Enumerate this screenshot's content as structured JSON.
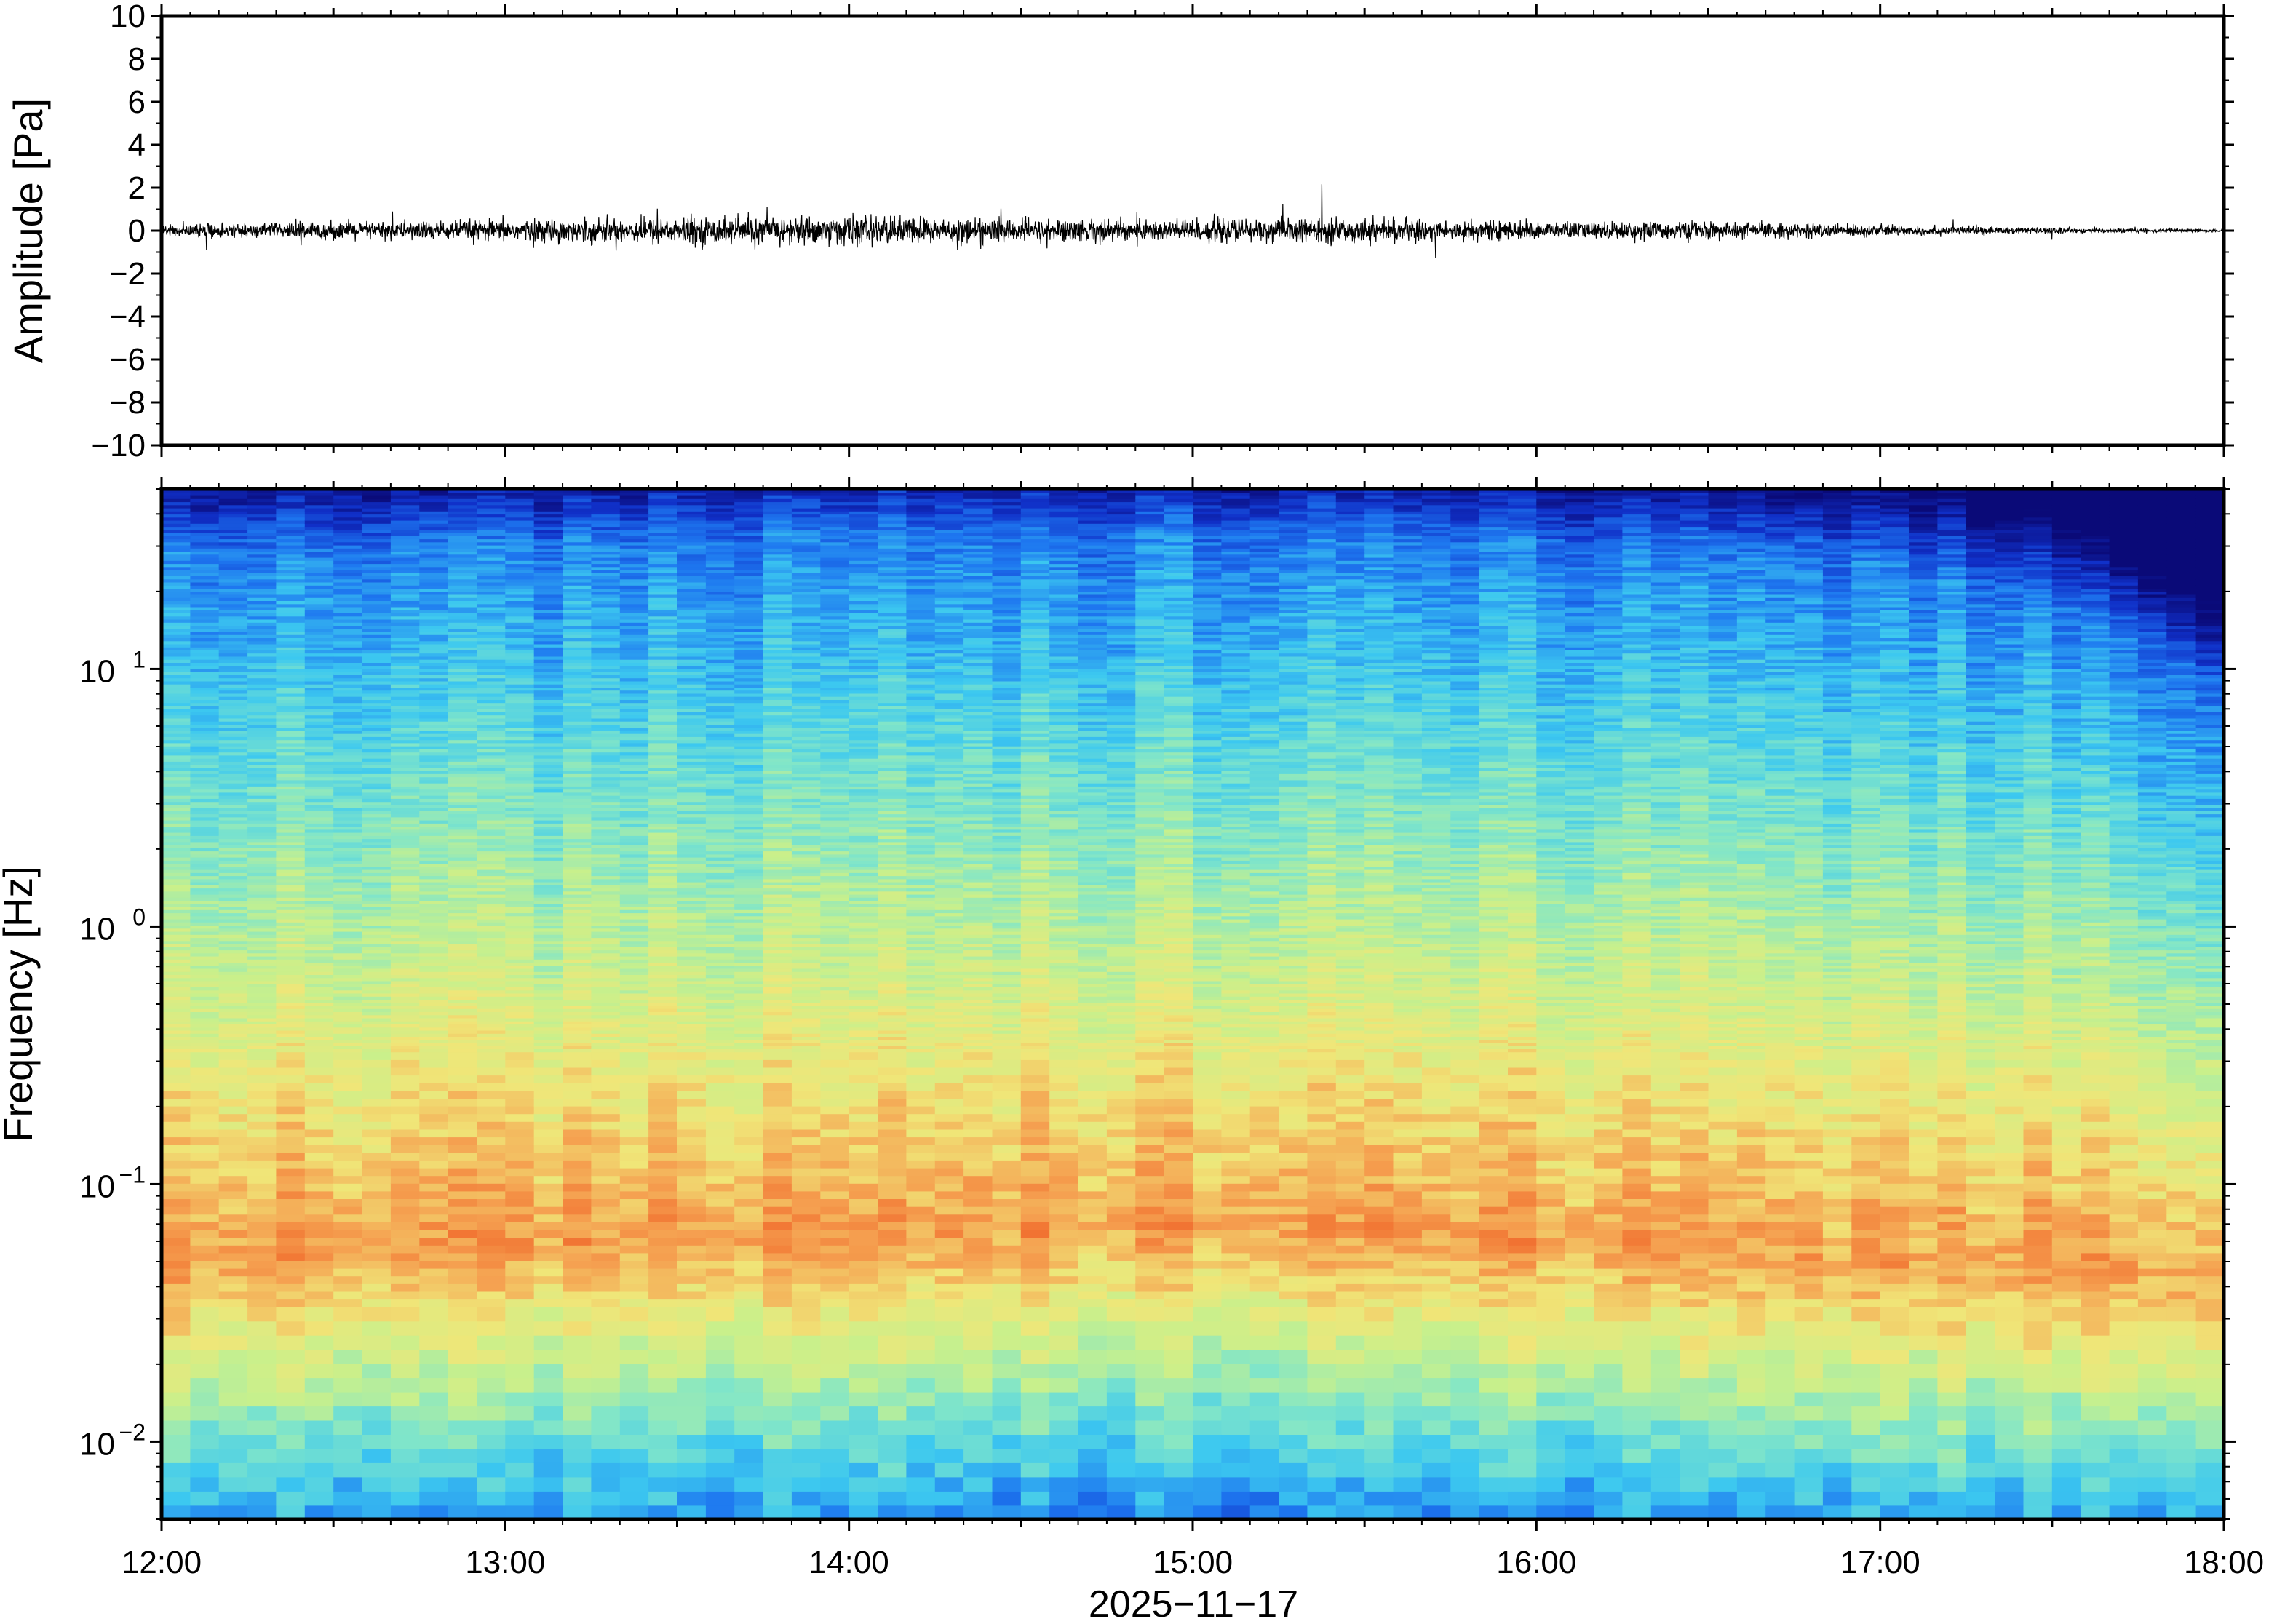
{
  "chart_data": [
    {
      "type": "line",
      "name": "waveform",
      "ylabel": "Amplitude [Pa]",
      "ylim": [
        -10,
        10
      ],
      "yticks": [
        10,
        8,
        6,
        4,
        2,
        0,
        -2,
        -4,
        -6,
        -8,
        -10
      ],
      "ytick_labels": [
        "10",
        "8",
        "6",
        "4",
        "2",
        "0",
        "−2",
        "−4",
        "−6",
        "−8",
        "−10"
      ],
      "xlim": [
        "12:00",
        "18:00"
      ],
      "grid": false,
      "envelope": {
        "x": [
          "12:00",
          "12:30",
          "13:00",
          "13:30",
          "14:00",
          "14:30",
          "15:00",
          "15:30",
          "16:00",
          "16:30",
          "17:00",
          "17:30",
          "18:00"
        ],
        "amplitude": [
          0.4,
          0.6,
          0.7,
          0.9,
          1.0,
          0.8,
          0.8,
          0.8,
          0.6,
          0.6,
          0.4,
          0.2,
          0.1
        ]
      },
      "line_color": "#000000"
    },
    {
      "type": "heatmap",
      "name": "spectrogram",
      "ylabel": "Frequency [Hz]",
      "yscale": "log",
      "ylim": [
        0.005,
        50
      ],
      "yticks": [
        0.01,
        0.1,
        1,
        10
      ],
      "ytick_labels": [
        {
          "base": "10",
          "exp": "−2"
        },
        {
          "base": "10",
          "exp": "−1"
        },
        {
          "base": "10",
          "exp": "0"
        },
        {
          "base": "10",
          "exp": "1"
        }
      ],
      "xlabel": "2025−11−17",
      "xlim": [
        "12:00",
        "18:00"
      ],
      "xticks": [
        "12:00",
        "13:00",
        "14:00",
        "15:00",
        "16:00",
        "17:00",
        "18:00"
      ],
      "colormap": [
        "#0a0a78",
        "#1030c8",
        "#1e78f0",
        "#3cc8f0",
        "#82e6c8",
        "#c8f08c",
        "#f0e678",
        "#f5a050",
        "#f06428"
      ],
      "ridge": {
        "x": [
          "12:00",
          "13:00",
          "14:00",
          "15:00",
          "16:00",
          "17:00",
          "17:30",
          "18:00"
        ],
        "upper_cutoff_hz": [
          28,
          30,
          32,
          32,
          30,
          26,
          18,
          8
        ],
        "peak_frequency_hz": [
          0.05,
          0.06,
          0.06,
          0.07,
          0.06,
          0.05,
          0.05,
          0.04
        ]
      }
    }
  ]
}
